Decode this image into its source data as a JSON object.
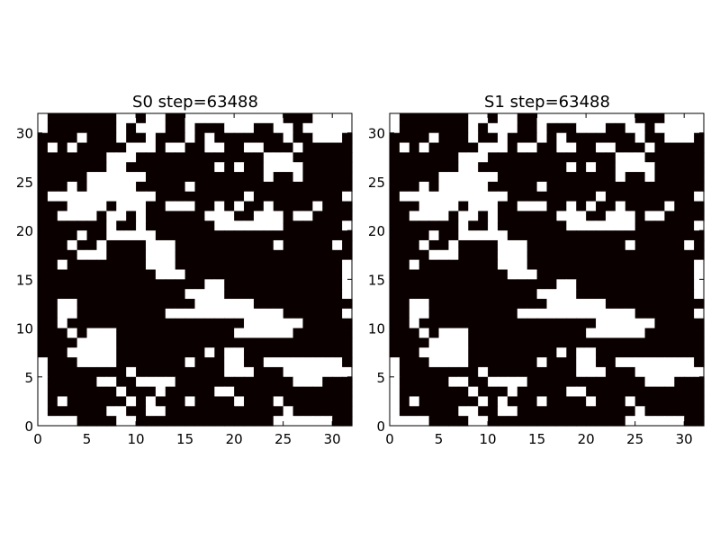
{
  "chart_data": [
    {
      "type": "heatmap",
      "title": "S0 step=63488",
      "xlim": [
        0,
        32
      ],
      "ylim": [
        0,
        32
      ],
      "xticks": [
        0,
        5,
        10,
        15,
        20,
        25,
        30
      ],
      "yticks": [
        0,
        5,
        10,
        15,
        20,
        25,
        30
      ],
      "colors": {
        "1": "#0b0000",
        "0": "#ffffff"
      },
      "grid": [
        "01111111001001100000000001110000",
        "01111111010001101110001100100000",
        "11110111011011101011111110110001",
        "10101111100010011001100111011111",
        "11111110001111111111111000111111",
        "11111110011111111101011000011111",
        "11111000000111111111111011011111",
        "11101000001111101111111111111111",
        "10000000000011111111101111111110",
        "11100001000110001101011011110111",
        "11000010010111111000110001001111",
        "11111110110111111100000001111110",
        "11110110000011111111111111111111",
        "11101101111000111111111101111101",
        "11110001111000111111111111111111",
        "11011111111000111111111111111110",
        "11111111111100011111111111111110",
        "11111111111111111001111111111110",
        "11111111111111100001111111111110",
        "11001111111111110000001111111111",
        "11001111111110000000000001111110",
        "11011111111111111111100000011111",
        "11101000111111111111000000111111",
        "11110000111111111111111111111111",
        "11100000111111111010011111111111",
        "01110000111111101110011000000001",
        "01111111101111111110001110000000",
        "01111100110000111111111111000111",
        "01111111011101111100111111111111",
        "01011111101011101111011101111111",
        "01111110011001111111111110111111",
        "00001111001111111111111100000011"
      ]
    },
    {
      "type": "heatmap",
      "title": "S1 step=63488",
      "xlim": [
        0,
        32
      ],
      "ylim": [
        0,
        32
      ],
      "xticks": [
        0,
        5,
        10,
        15,
        20,
        25,
        30
      ],
      "yticks": [
        0,
        5,
        10,
        15,
        20,
        25,
        30
      ],
      "colors": {
        "1": "#0b0000",
        "0": "#ffffff"
      },
      "grid": [
        "01111111001001100000000001110000",
        "01111111010001101110001100100000",
        "11110111011011101011111110110001",
        "10101111100010011001100111011111",
        "11111110001111111111111000111111",
        "11111110011111111101011000011111",
        "11111000000111111111111011011111",
        "11101000001111101111111111111111",
        "10000000000011111111101111111110",
        "11100001000110001101011011110111",
        "11000010010111111000110001001111",
        "11111110110111111100000001111110",
        "11110110000011111111111111111111",
        "11101101111000111111111101111101",
        "11110001111000111111111111111111",
        "11011111111000111111111111111110",
        "11111111111100011111111111111110",
        "11111111111111111001111111111110",
        "11111111111111100001111111111110",
        "11001111111111110000001111111111",
        "11001111111110000000000001111110",
        "11011111111111111111100000011111",
        "11101000111111111111000000111111",
        "11110000111111111111111111111111",
        "11100000111111111010011111111111",
        "01110000111111101110011000000001",
        "01111111101111111110001110000000",
        "01111100110000111111111111000111",
        "01111111011101111100111111111111",
        "01011111101011101111011101111111",
        "01111110011001111111111110111111",
        "00001111001111111111111100000011"
      ]
    }
  ]
}
